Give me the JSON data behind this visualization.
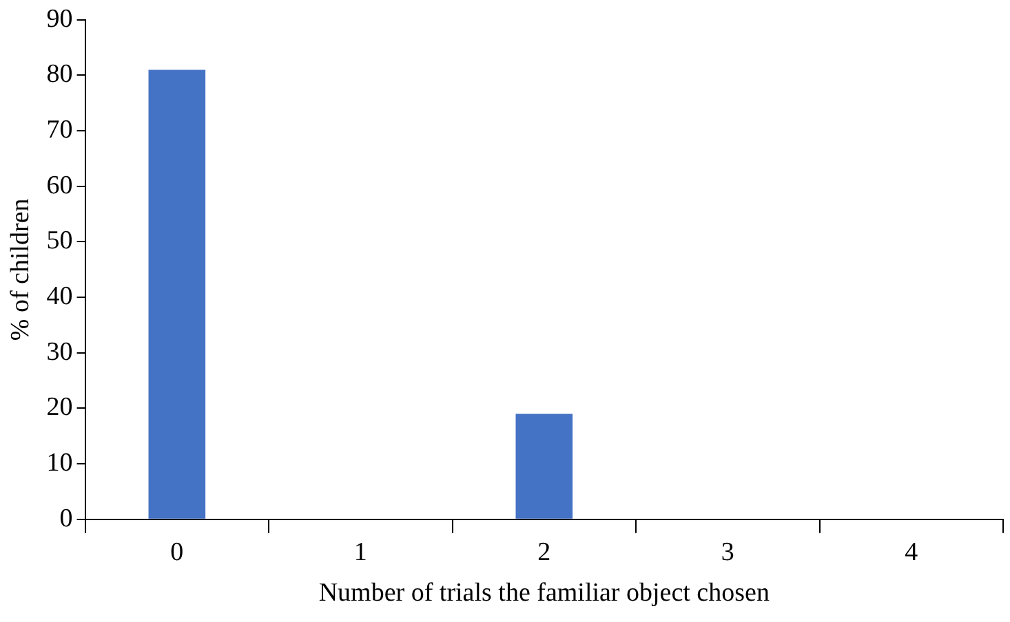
{
  "chart_data": {
    "type": "bar",
    "xlabel": "Number of trials the familiar object chosen",
    "ylabel": "% of children",
    "categories": [
      "0",
      "1",
      "2",
      "3",
      "4"
    ],
    "values": [
      81,
      0,
      19,
      0,
      0
    ],
    "color": "#4472c4",
    "ylim": [
      0,
      90
    ],
    "yticks": [
      0,
      10,
      20,
      30,
      40,
      50,
      60,
      70,
      80,
      90
    ],
    "grid": false,
    "legend": false
  }
}
